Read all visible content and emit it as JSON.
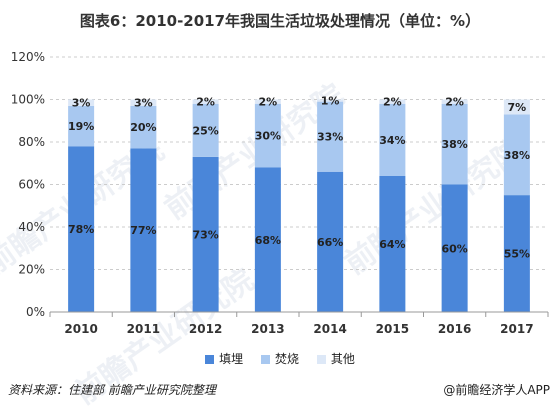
{
  "title": "图表6：2010-2017年我国生活垃圾处理情况（单位：%）",
  "source_text": "资料来源：住建部  前瞻产业研究院整理",
  "brand_text": "@前瞻经济学人APP",
  "watermark": "前瞻产业研究院",
  "colors": {
    "landfill": "#4a86d9",
    "incineration": "#a8c8f0",
    "other": "#dde8f7",
    "axis": "#999999",
    "grid": "#cccccc"
  },
  "chart_data": {
    "type": "bar",
    "stacked": true,
    "categories": [
      "2010",
      "2011",
      "2012",
      "2013",
      "2014",
      "2015",
      "2016",
      "2017"
    ],
    "series": [
      {
        "name": "填埋",
        "values": [
          78,
          77,
          73,
          68,
          66,
          64,
          60,
          55
        ]
      },
      {
        "name": "焚烧",
        "values": [
          19,
          20,
          25,
          30,
          33,
          34,
          38,
          38
        ]
      },
      {
        "name": "其他",
        "values": [
          3,
          3,
          2,
          2,
          1,
          2,
          2,
          7
        ]
      }
    ],
    "ylim": [
      0,
      120
    ],
    "yticks": [
      "0%",
      "20%",
      "40%",
      "60%",
      "80%",
      "100%",
      "120%"
    ],
    "value_suffix": "%",
    "grid": true,
    "legend_position": "bottom"
  }
}
